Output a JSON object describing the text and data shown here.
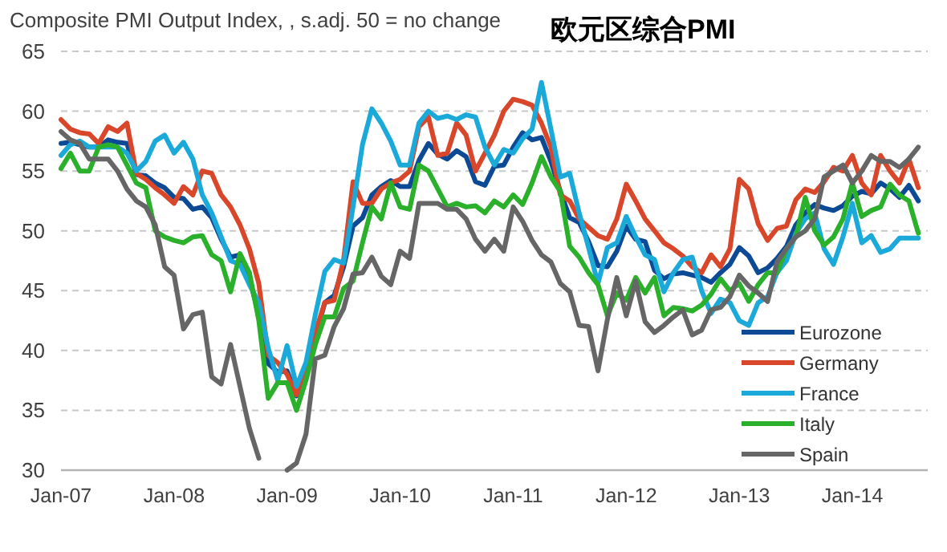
{
  "chart_data": {
    "type": "line",
    "title": "欧元区综合PMI",
    "subtitle": "Composite PMI Output Index, , s.adj. 50 = no change",
    "x": [
      "2007-01",
      "2007-02",
      "2007-03",
      "2007-04",
      "2007-05",
      "2007-06",
      "2007-07",
      "2007-08",
      "2007-09",
      "2007-10",
      "2007-11",
      "2007-12",
      "2008-01",
      "2008-02",
      "2008-03",
      "2008-04",
      "2008-05",
      "2008-06",
      "2008-07",
      "2008-08",
      "2008-09",
      "2008-10",
      "2008-11",
      "2008-12",
      "2009-01",
      "2009-02",
      "2009-03",
      "2009-04",
      "2009-05",
      "2009-06",
      "2009-07",
      "2009-08",
      "2009-09",
      "2009-10",
      "2009-11",
      "2009-12",
      "2010-01",
      "2010-02",
      "2010-03",
      "2010-04",
      "2010-05",
      "2010-06",
      "2010-07",
      "2010-08",
      "2010-09",
      "2010-10",
      "2010-11",
      "2010-12",
      "2011-01",
      "2011-02",
      "2011-03",
      "2011-04",
      "2011-05",
      "2011-06",
      "2011-07",
      "2011-08",
      "2011-09",
      "2011-10",
      "2011-11",
      "2011-12",
      "2012-01",
      "2012-02",
      "2012-03",
      "2012-04",
      "2012-05",
      "2012-06",
      "2012-07",
      "2012-08",
      "2012-09",
      "2012-10",
      "2012-11",
      "2012-12",
      "2013-01",
      "2013-02",
      "2013-03",
      "2013-04",
      "2013-05",
      "2013-06",
      "2013-07",
      "2013-08",
      "2013-09",
      "2013-10",
      "2013-11",
      "2013-12",
      "2014-01",
      "2014-02",
      "2014-03",
      "2014-04",
      "2014-05",
      "2014-06",
      "2014-07",
      "2014-08"
    ],
    "series": [
      {
        "name": "Eurozone",
        "color": "#0d4a96",
        "values": [
          57.3,
          57.4,
          57.2,
          57.0,
          57.0,
          57.6,
          57.4,
          57.3,
          54.7,
          54.6,
          54.0,
          53.6,
          52.8,
          52.7,
          51.8,
          52.0,
          51.1,
          49.3,
          47.8,
          48.0,
          46.0,
          43.0,
          38.9,
          38.2,
          38.3,
          36.2,
          38.3,
          41.1,
          44.0,
          44.6,
          47.0,
          50.4,
          51.1,
          53.0,
          53.7,
          54.2,
          53.7,
          53.7,
          55.9,
          57.3,
          56.4,
          56.0,
          56.7,
          56.2,
          54.1,
          53.8,
          55.4,
          55.5,
          57.0,
          58.2,
          57.6,
          57.8,
          55.8,
          53.3,
          51.1,
          50.7,
          49.1,
          47.1,
          47.0,
          48.3,
          50.4,
          49.3,
          49.1,
          46.7,
          46.0,
          46.4,
          46.5,
          46.3,
          46.1,
          45.7,
          46.5,
          47.2,
          48.6,
          47.9,
          46.5,
          46.9,
          47.7,
          48.7,
          50.5,
          51.5,
          52.2,
          51.9,
          51.7,
          52.1,
          52.9,
          53.3,
          53.1,
          54.0,
          53.5,
          52.8,
          53.8,
          52.5
        ]
      },
      {
        "name": "Germany",
        "color": "#d9472b",
        "values": [
          59.3,
          58.5,
          58.2,
          58.1,
          57.3,
          58.7,
          58.3,
          59.0,
          54.8,
          54.3,
          53.6,
          53.0,
          52.3,
          53.7,
          53.0,
          55.0,
          54.8,
          53.0,
          52.0,
          50.5,
          48.5,
          45.6,
          39.6,
          39.0,
          38.0,
          36.3,
          38.5,
          41.5,
          44.0,
          44.2,
          47.6,
          54.1,
          52.3,
          52.3,
          53.5,
          54.0,
          54.3,
          55.0,
          58.7,
          59.5,
          56.3,
          56.5,
          59.0,
          58.0,
          55.0,
          56.5,
          58.0,
          60.0,
          61.0,
          60.8,
          60.5,
          59.0,
          57.0,
          53.0,
          52.5,
          51.0,
          50.3,
          49.6,
          49.3,
          51.0,
          53.9,
          52.5,
          51.0,
          50.0,
          49.0,
          48.5,
          47.9,
          47.0,
          46.5,
          48.0,
          47.0,
          48.5,
          54.3,
          53.5,
          50.6,
          49.2,
          50.2,
          50.4,
          52.6,
          53.5,
          53.2,
          54.1,
          55.3,
          55.0,
          56.3,
          54.0,
          53.0,
          56.3,
          55.0,
          54.0,
          56.0,
          53.6
        ]
      },
      {
        "name": "France",
        "color": "#1aa9d8",
        "values": [
          56.3,
          57.2,
          57.5,
          57.0,
          57.0,
          57.0,
          57.0,
          56.5,
          55.0,
          55.8,
          57.5,
          58.0,
          56.5,
          57.4,
          56.0,
          53.0,
          51.5,
          49.5,
          47.5,
          47.2,
          45.5,
          44.0,
          40.2,
          37.5,
          40.4,
          37.0,
          39.0,
          43.0,
          46.6,
          47.6,
          47.3,
          52.0,
          57.2,
          60.2,
          59.0,
          57.5,
          55.5,
          55.5,
          59.0,
          60.0,
          59.4,
          59.6,
          59.3,
          59.7,
          59.5,
          57.0,
          55.5,
          56.8,
          56.5,
          57.7,
          58.5,
          62.4,
          58.5,
          54.5,
          54.8,
          51.5,
          48.6,
          45.6,
          48.6,
          49.0,
          51.2,
          49.5,
          48.0,
          47.6,
          44.9,
          46.5,
          47.6,
          47.8,
          45.0,
          43.1,
          44.3,
          44.0,
          42.5,
          42.1,
          44.0,
          44.5,
          46.5,
          47.5,
          49.8,
          51.0,
          51.5,
          48.5,
          47.2,
          49.5,
          52.3,
          49.0,
          49.6,
          48.2,
          48.5,
          49.4,
          49.4,
          49.4
        ]
      },
      {
        "name": "Italy",
        "color": "#2bb02b",
        "values": [
          55.2,
          56.5,
          55.0,
          55.0,
          57.0,
          57.2,
          57.0,
          55.5,
          54.0,
          53.6,
          50.0,
          49.5,
          49.2,
          49.0,
          49.5,
          49.6,
          48.0,
          47.5,
          44.9,
          48.1,
          46.5,
          42.5,
          36.0,
          37.3,
          37.3,
          35.0,
          37.5,
          40.5,
          42.8,
          42.8,
          45.2,
          45.8,
          49.0,
          52.0,
          51.0,
          54.0,
          52.0,
          51.8,
          55.5,
          55.0,
          53.5,
          52.0,
          52.3,
          52.0,
          52.1,
          51.5,
          52.5,
          52.0,
          53.0,
          52.2,
          54.0,
          56.2,
          54.5,
          53.3,
          48.7,
          47.8,
          46.5,
          45.5,
          42.9,
          44.8,
          44.2,
          46.1,
          44.8,
          46.1,
          42.9,
          43.6,
          43.5,
          43.3,
          43.8,
          44.7,
          46.0,
          45.0,
          45.6,
          44.1,
          45.5,
          46.5,
          46.5,
          48.5,
          49.5,
          52.8,
          50.0,
          48.8,
          49.5,
          51.0,
          54.0,
          51.2,
          51.7,
          52.0,
          53.9,
          53.0,
          52.5,
          49.8
        ]
      },
      {
        "name": "Spain",
        "color": "#666666",
        "values": [
          58.3,
          57.6,
          57.3,
          56.0,
          56.0,
          56.0,
          55.0,
          53.5,
          52.5,
          52.0,
          50.5,
          47.0,
          46.3,
          41.8,
          43.0,
          43.2,
          37.8,
          37.2,
          40.5,
          37.0,
          33.5,
          31.0,
          null,
          null,
          30.0,
          30.6,
          33.0,
          39.3,
          39.6,
          42.0,
          43.5,
          46.4,
          46.5,
          47.8,
          46.2,
          45.5,
          48.3,
          47.7,
          52.3,
          52.3,
          52.3,
          51.8,
          51.8,
          51.0,
          49.3,
          48.3,
          49.3,
          48.3,
          52.0,
          50.8,
          49.2,
          48.0,
          47.4,
          45.6,
          44.9,
          42.1,
          42.0,
          38.3,
          42.6,
          46.1,
          42.9,
          45.8,
          42.4,
          41.5,
          42.1,
          42.8,
          43.4,
          41.3,
          41.7,
          43.4,
          43.6,
          44.5,
          46.3,
          45.4,
          44.8,
          44.1,
          47.4,
          48.5,
          49.5,
          50.0,
          51.0,
          54.5,
          55.0,
          55.5,
          54.0,
          55.0,
          56.3,
          55.8,
          55.8,
          55.3,
          56.0,
          57.0
        ]
      }
    ],
    "xlim": [
      "2007-01",
      "2014-09"
    ],
    "ylim": [
      30,
      65
    ],
    "xticks": [
      {
        "value": "2007-01",
        "label": "Jan-07"
      },
      {
        "value": "2008-01",
        "label": "Jan-08"
      },
      {
        "value": "2009-01",
        "label": "Jan-09"
      },
      {
        "value": "2010-01",
        "label": "Jan-10"
      },
      {
        "value": "2011-01",
        "label": "Jan-11"
      },
      {
        "value": "2012-01",
        "label": "Jan-12"
      },
      {
        "value": "2013-01",
        "label": "Jan-13"
      },
      {
        "value": "2014-01",
        "label": "Jan-14"
      }
    ],
    "yticks": [
      30,
      35,
      40,
      45,
      50,
      55,
      60,
      65
    ],
    "grid": "y",
    "legend": "bottom right",
    "line_style": "solid"
  }
}
